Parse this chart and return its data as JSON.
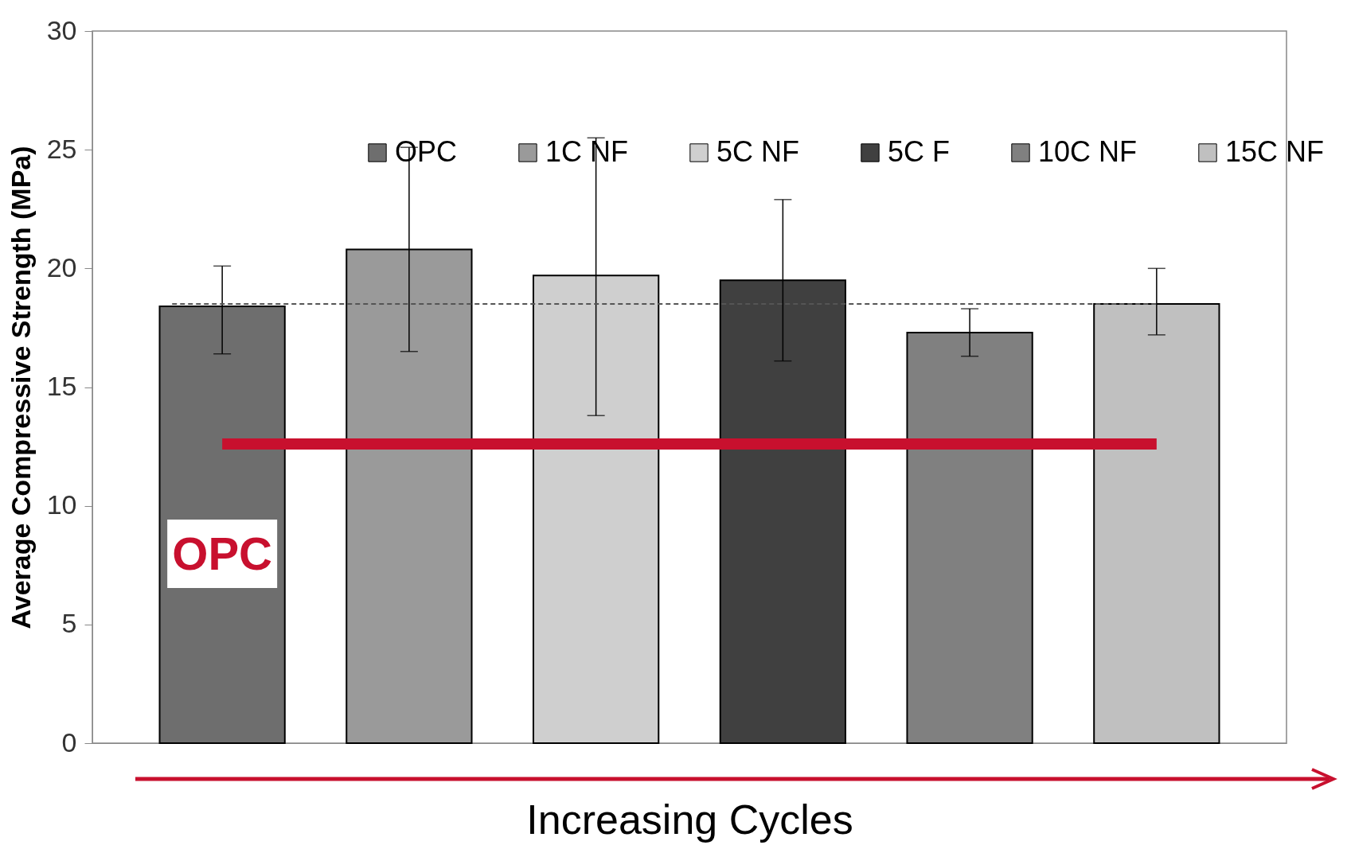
{
  "chart_data": {
    "type": "bar",
    "stacked": true,
    "ylabel": "Average Compressive Strength (MPa)",
    "xlabel": "Increasing Cycles",
    "categories": [
      null,
      null,
      null,
      null,
      null,
      null
    ],
    "series": [
      {
        "name": "OPC",
        "color": "#6e6e6e",
        "values": [
          18.4,
          null,
          null,
          null,
          null,
          null
        ],
        "errors": [
          [
            16.4,
            20.1
          ],
          null,
          null,
          null,
          null,
          null
        ]
      },
      {
        "name": "1C NF",
        "color": "#9a9a9a",
        "values": [
          null,
          20.8,
          null,
          null,
          null,
          null
        ],
        "errors": [
          null,
          [
            16.5,
            25.1
          ],
          null,
          null,
          null,
          null
        ]
      },
      {
        "name": "5C NF",
        "color": "#cfcfcf",
        "values": [
          null,
          null,
          19.7,
          null,
          null,
          null
        ],
        "errors": [
          null,
          null,
          [
            13.8,
            25.5
          ],
          null,
          null,
          null
        ]
      },
      {
        "name": "5C F",
        "color": "#404040",
        "values": [
          null,
          null,
          null,
          19.5,
          null,
          null
        ],
        "errors": [
          null,
          null,
          null,
          [
            16.1,
            22.9
          ],
          null,
          null
        ]
      },
      {
        "name": "10C NF",
        "color": "#808080",
        "values": [
          null,
          null,
          null,
          null,
          17.3,
          null
        ],
        "errors": [
          null,
          null,
          null,
          null,
          [
            16.3,
            18.3
          ],
          null
        ]
      },
      {
        "name": "15C NF",
        "color": "#c0c0c0",
        "values": [
          null,
          null,
          null,
          null,
          null,
          18.5
        ],
        "errors": [
          null,
          null,
          null,
          null,
          null,
          [
            17.2,
            20.0
          ]
        ]
      }
    ],
    "ref_lines": [
      {
        "axis": "y",
        "value": 18.5,
        "color": "#555555",
        "line_style": "dashed"
      },
      {
        "axis": "y",
        "value": 12.6,
        "label": "OPC",
        "color": "#c8102e"
      }
    ],
    "ylim": [
      0,
      30
    ],
    "yticks": [
      0,
      5,
      10,
      15,
      20,
      25,
      30
    ],
    "grid": false,
    "legend": "top"
  }
}
